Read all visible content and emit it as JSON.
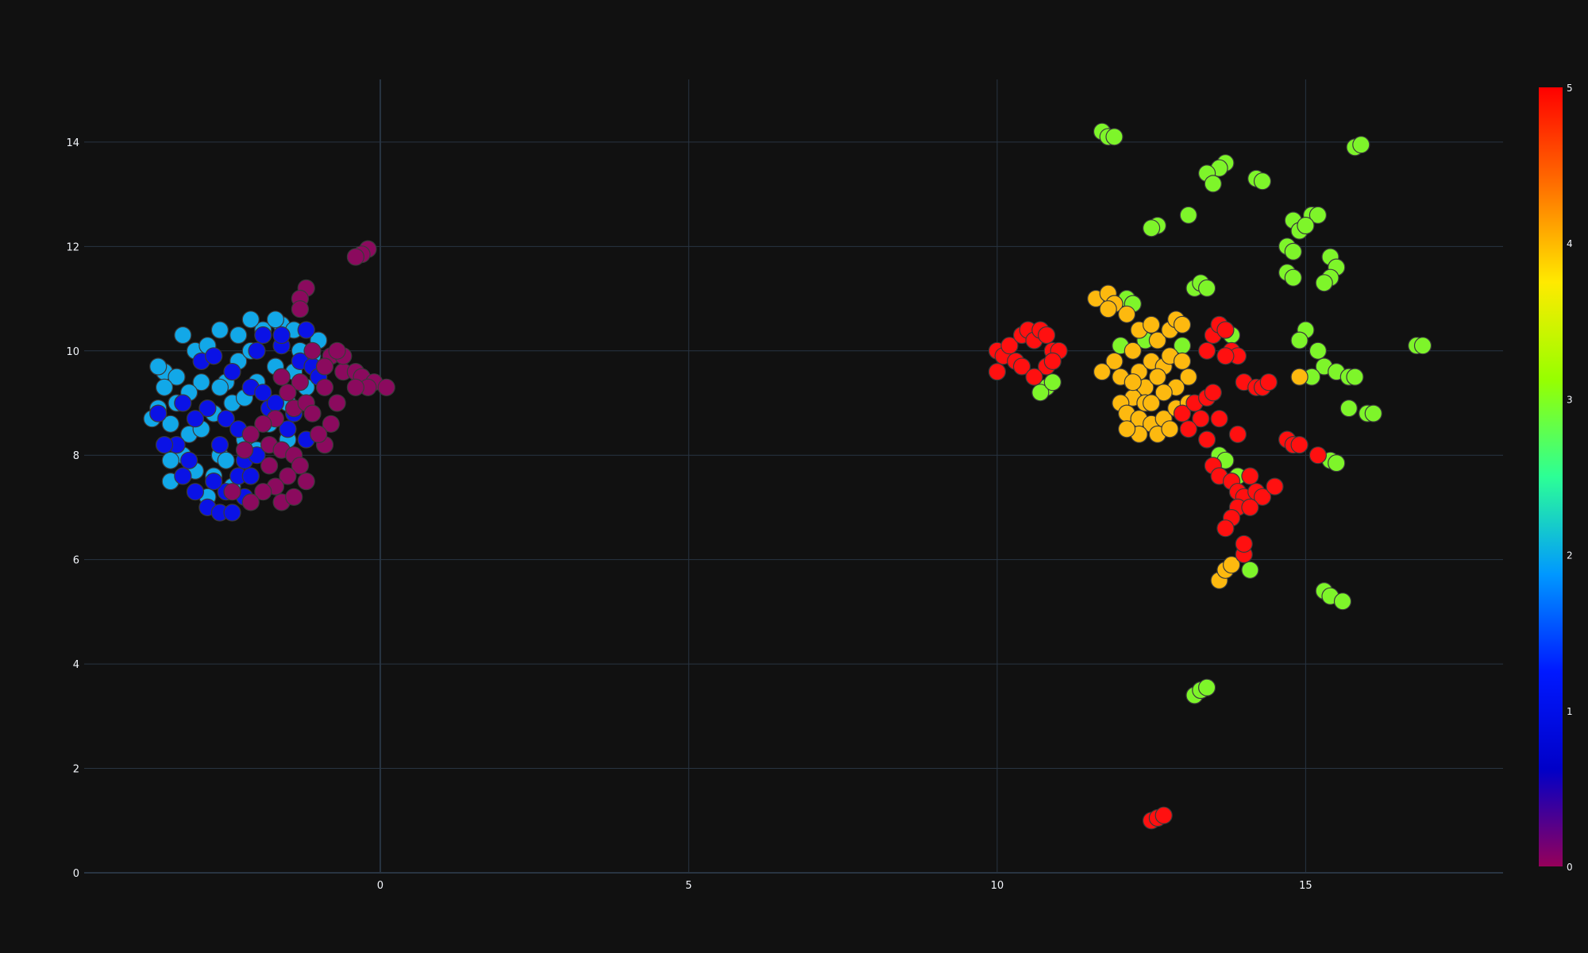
{
  "chart_data": {
    "type": "scatter",
    "title": "",
    "xlabel": "",
    "ylabel": "",
    "xlim": [
      -4.8,
      18.2
    ],
    "ylim": [
      0,
      15.2
    ],
    "xticks": [
      0,
      5,
      10,
      15
    ],
    "xtick_labels": [
      "0",
      "5",
      "10",
      "15"
    ],
    "yticks": [
      0,
      2,
      4,
      6,
      8,
      10,
      12,
      14
    ],
    "ytick_labels": [
      "0",
      "2",
      "4",
      "6",
      "8",
      "10",
      "12",
      "14"
    ],
    "grid": true,
    "colorscale": "rainbow",
    "color_range": [
      0,
      5
    ],
    "colorbar_ticks": [
      0,
      1,
      2,
      3,
      4,
      5
    ],
    "colorbar_tick_labels": [
      "0",
      "1",
      "2",
      "3",
      "4",
      "5"
    ],
    "colorscale_stops": [
      "#96005a",
      "#0000c8",
      "#0019ff",
      "#0098ff",
      "#2cff96",
      "#97ff00",
      "#ffea00",
      "#ff6f00",
      "#ff0000"
    ],
    "clusters": [
      {
        "class": 2,
        "points": [
          [
            -3.0,
            10.0
          ],
          [
            -2.8,
            10.1
          ],
          [
            -3.5,
            9.6
          ],
          [
            -3.3,
            9.5
          ],
          [
            -3.4,
            8.6
          ],
          [
            -3.1,
            8.4
          ],
          [
            -3.6,
            8.9
          ],
          [
            -3.2,
            8.0
          ],
          [
            -3.0,
            7.7
          ],
          [
            -3.4,
            7.5
          ],
          [
            -2.7,
            7.6
          ],
          [
            -2.6,
            8.0
          ],
          [
            -2.9,
            8.5
          ],
          [
            -2.5,
            9.4
          ],
          [
            -2.3,
            9.8
          ],
          [
            -2.1,
            10.0
          ],
          [
            -1.9,
            10.4
          ],
          [
            -1.6,
            10.5
          ],
          [
            -1.7,
            9.7
          ],
          [
            -1.4,
            9.6
          ],
          [
            -1.3,
            10.0
          ],
          [
            -1.0,
            10.2
          ],
          [
            -1.2,
            9.3
          ],
          [
            -1.5,
            9.0
          ],
          [
            -2.4,
            9.0
          ],
          [
            -2.6,
            9.3
          ],
          [
            -2.0,
            9.4
          ],
          [
            -1.8,
            8.6
          ],
          [
            -2.7,
            8.8
          ],
          [
            -2.2,
            8.3
          ],
          [
            -3.3,
            9.0
          ],
          [
            -3.5,
            9.3
          ],
          [
            -3.7,
            8.7
          ],
          [
            -1.7,
            10.6
          ],
          [
            -1.4,
            10.4
          ],
          [
            -2.9,
            9.4
          ],
          [
            -2.5,
            7.9
          ],
          [
            -2.0,
            8.1
          ],
          [
            -1.1,
            9.9
          ],
          [
            -1.5,
            8.3
          ],
          [
            -2.1,
            10.6
          ],
          [
            -2.3,
            10.3
          ],
          [
            -3.2,
            10.3
          ],
          [
            -3.4,
            7.9
          ],
          [
            -2.8,
            7.2
          ],
          [
            -2.4,
            7.4
          ],
          [
            -3.1,
            9.2
          ],
          [
            -2.6,
            10.4
          ],
          [
            -3.6,
            9.7
          ],
          [
            -2.2,
            9.1
          ]
        ]
      },
      {
        "class": 1,
        "points": [
          [
            -3.6,
            8.8
          ],
          [
            -3.3,
            8.2
          ],
          [
            -3.1,
            7.9
          ],
          [
            -3.0,
            7.3
          ],
          [
            -2.8,
            7.0
          ],
          [
            -2.6,
            6.9
          ],
          [
            -2.5,
            7.3
          ],
          [
            -2.3,
            7.6
          ],
          [
            -2.2,
            7.9
          ],
          [
            -2.0,
            8.0
          ],
          [
            -2.1,
            7.6
          ],
          [
            -2.6,
            8.2
          ],
          [
            -2.8,
            8.9
          ],
          [
            -2.5,
            8.7
          ],
          [
            -2.4,
            9.6
          ],
          [
            -2.1,
            9.3
          ],
          [
            -1.9,
            10.3
          ],
          [
            -1.6,
            10.1
          ],
          [
            -1.3,
            9.8
          ],
          [
            -1.1,
            9.7
          ],
          [
            -1.2,
            10.4
          ],
          [
            -1.4,
            8.8
          ],
          [
            -1.2,
            8.3
          ],
          [
            -1.5,
            8.5
          ],
          [
            -2.9,
            9.8
          ],
          [
            -3.2,
            9.0
          ],
          [
            -1.8,
            8.9
          ],
          [
            -1.9,
            9.2
          ],
          [
            -3.5,
            8.2
          ],
          [
            -2.7,
            7.5
          ],
          [
            -2.4,
            6.9
          ],
          [
            -2.2,
            7.2
          ],
          [
            -3.2,
            7.6
          ],
          [
            -2.0,
            10.0
          ],
          [
            -1.7,
            9.0
          ],
          [
            -2.3,
            8.5
          ],
          [
            -1.6,
            10.3
          ],
          [
            -2.7,
            9.9
          ],
          [
            -3.0,
            8.7
          ],
          [
            -1.0,
            9.5
          ]
        ]
      },
      {
        "class": 0,
        "points": [
          [
            -0.2,
            11.95
          ],
          [
            -0.3,
            11.85
          ],
          [
            -0.4,
            11.8
          ],
          [
            -1.2,
            11.2
          ],
          [
            -1.3,
            11.0
          ],
          [
            -1.3,
            10.8
          ],
          [
            -1.1,
            10.0
          ],
          [
            -0.8,
            9.9
          ],
          [
            -0.9,
            9.7
          ],
          [
            -1.3,
            9.4
          ],
          [
            -1.5,
            9.2
          ],
          [
            -1.4,
            8.9
          ],
          [
            -1.2,
            9.0
          ],
          [
            -1.7,
            8.7
          ],
          [
            -1.9,
            8.6
          ],
          [
            -2.1,
            8.4
          ],
          [
            -1.8,
            8.2
          ],
          [
            -1.6,
            8.1
          ],
          [
            -1.4,
            8.0
          ],
          [
            -1.3,
            7.8
          ],
          [
            -1.5,
            7.6
          ],
          [
            -1.7,
            7.4
          ],
          [
            -1.9,
            7.3
          ],
          [
            -2.1,
            7.1
          ],
          [
            -1.6,
            7.1
          ],
          [
            -1.4,
            7.2
          ],
          [
            -1.2,
            7.5
          ],
          [
            -0.9,
            8.2
          ],
          [
            -0.8,
            8.6
          ],
          [
            -0.7,
            9.0
          ],
          [
            -0.6,
            9.6
          ],
          [
            -0.4,
            9.6
          ],
          [
            -0.3,
            9.5
          ],
          [
            -0.1,
            9.4
          ],
          [
            -0.2,
            9.3
          ],
          [
            0.1,
            9.3
          ],
          [
            -0.4,
            9.3
          ],
          [
            -0.6,
            9.9
          ],
          [
            -1.0,
            8.4
          ],
          [
            -1.6,
            9.5
          ],
          [
            -1.8,
            7.8
          ],
          [
            -2.4,
            7.3
          ],
          [
            -1.1,
            8.8
          ],
          [
            -2.2,
            8.1
          ],
          [
            -0.9,
            9.3
          ],
          [
            -0.7,
            10.0
          ]
        ]
      },
      {
        "class": 3,
        "points": [
          [
            11.7,
            14.2
          ],
          [
            11.8,
            14.1
          ],
          [
            11.9,
            14.1
          ],
          [
            13.7,
            13.6
          ],
          [
            13.6,
            13.5
          ],
          [
            13.4,
            13.4
          ],
          [
            13.5,
            13.2
          ],
          [
            14.2,
            13.3
          ],
          [
            14.3,
            13.25
          ],
          [
            13.1,
            12.6
          ],
          [
            12.6,
            12.4
          ],
          [
            12.5,
            12.35
          ],
          [
            14.8,
            12.5
          ],
          [
            15.1,
            12.6
          ],
          [
            15.2,
            12.6
          ],
          [
            15.8,
            13.9
          ],
          [
            15.9,
            13.95
          ],
          [
            14.7,
            12.0
          ],
          [
            14.8,
            11.9
          ],
          [
            14.9,
            12.3
          ],
          [
            15.0,
            12.4
          ],
          [
            14.7,
            11.5
          ],
          [
            14.8,
            11.4
          ],
          [
            15.4,
            11.8
          ],
          [
            15.5,
            11.6
          ],
          [
            15.4,
            11.4
          ],
          [
            15.3,
            11.3
          ],
          [
            13.2,
            11.2
          ],
          [
            13.3,
            11.3
          ],
          [
            13.4,
            11.2
          ],
          [
            13.8,
            10.3
          ],
          [
            15.0,
            10.4
          ],
          [
            14.9,
            10.2
          ],
          [
            15.2,
            10.0
          ],
          [
            15.3,
            9.7
          ],
          [
            15.1,
            9.5
          ],
          [
            15.5,
            9.6
          ],
          [
            15.7,
            9.5
          ],
          [
            15.8,
            9.5
          ],
          [
            15.7,
            8.9
          ],
          [
            16.0,
            8.8
          ],
          [
            16.1,
            8.8
          ],
          [
            16.8,
            10.1
          ],
          [
            16.9,
            10.1
          ],
          [
            15.4,
            7.9
          ],
          [
            15.5,
            7.85
          ],
          [
            15.3,
            5.4
          ],
          [
            15.4,
            5.3
          ],
          [
            15.6,
            5.2
          ],
          [
            13.2,
            3.4
          ],
          [
            13.3,
            3.5
          ],
          [
            13.4,
            3.55
          ],
          [
            10.8,
            9.3
          ],
          [
            10.7,
            9.2
          ],
          [
            10.9,
            9.4
          ],
          [
            12.1,
            11.0
          ],
          [
            12.2,
            10.9
          ],
          [
            13.6,
            8.0
          ],
          [
            13.7,
            7.9
          ],
          [
            13.9,
            7.6
          ],
          [
            14.1,
            5.8
          ],
          [
            13.0,
            10.1
          ],
          [
            12.4,
            10.2
          ],
          [
            12.0,
            10.1
          ]
        ]
      },
      {
        "class": 4,
        "points": [
          [
            11.6,
            11.0
          ],
          [
            11.8,
            11.1
          ],
          [
            11.9,
            10.9
          ],
          [
            12.1,
            10.7
          ],
          [
            12.3,
            10.4
          ],
          [
            12.5,
            10.5
          ],
          [
            12.6,
            10.2
          ],
          [
            12.8,
            10.4
          ],
          [
            12.9,
            10.6
          ],
          [
            12.2,
            10.0
          ],
          [
            11.9,
            9.8
          ],
          [
            11.7,
            9.6
          ],
          [
            12.0,
            9.5
          ],
          [
            12.3,
            9.6
          ],
          [
            12.5,
            9.8
          ],
          [
            12.7,
            9.7
          ],
          [
            12.8,
            9.9
          ],
          [
            13.0,
            9.8
          ],
          [
            13.1,
            9.5
          ],
          [
            12.9,
            9.3
          ],
          [
            12.7,
            9.2
          ],
          [
            12.4,
            9.3
          ],
          [
            12.2,
            9.1
          ],
          [
            12.0,
            9.0
          ],
          [
            12.1,
            8.8
          ],
          [
            12.3,
            8.7
          ],
          [
            12.5,
            8.6
          ],
          [
            12.7,
            8.7
          ],
          [
            12.9,
            8.9
          ],
          [
            13.1,
            9.0
          ],
          [
            12.6,
            8.4
          ],
          [
            12.3,
            8.4
          ],
          [
            12.1,
            8.5
          ],
          [
            12.4,
            9.0
          ],
          [
            12.6,
            9.5
          ],
          [
            11.8,
            10.8
          ],
          [
            13.0,
            10.5
          ],
          [
            12.2,
            9.4
          ],
          [
            13.6,
            5.6
          ],
          [
            13.7,
            5.8
          ],
          [
            13.8,
            5.9
          ],
          [
            14.9,
            9.5
          ],
          [
            12.8,
            8.5
          ],
          [
            12.5,
            9.0
          ]
        ]
      },
      {
        "class": 5,
        "points": [
          [
            10.0,
            10.0
          ],
          [
            10.1,
            9.9
          ],
          [
            10.2,
            10.1
          ],
          [
            10.3,
            9.8
          ],
          [
            10.0,
            9.6
          ],
          [
            10.4,
            9.7
          ],
          [
            10.4,
            10.3
          ],
          [
            10.5,
            10.4
          ],
          [
            10.6,
            10.2
          ],
          [
            10.7,
            10.4
          ],
          [
            10.8,
            10.3
          ],
          [
            10.9,
            10.0
          ],
          [
            11.0,
            10.0
          ],
          [
            10.8,
            9.7
          ],
          [
            10.9,
            9.8
          ],
          [
            10.6,
            9.5
          ],
          [
            13.0,
            8.8
          ],
          [
            13.2,
            9.0
          ],
          [
            13.3,
            8.7
          ],
          [
            13.1,
            8.5
          ],
          [
            13.4,
            9.1
          ],
          [
            13.5,
            9.2
          ],
          [
            13.6,
            8.7
          ],
          [
            13.5,
            10.3
          ],
          [
            13.6,
            10.5
          ],
          [
            13.7,
            10.4
          ],
          [
            13.8,
            10.0
          ],
          [
            13.9,
            9.9
          ],
          [
            13.4,
            10.0
          ],
          [
            14.0,
            9.4
          ],
          [
            14.2,
            9.3
          ],
          [
            14.3,
            9.3
          ],
          [
            14.4,
            9.4
          ],
          [
            13.9,
            8.4
          ],
          [
            13.5,
            7.8
          ],
          [
            13.6,
            7.6
          ],
          [
            13.8,
            7.5
          ],
          [
            13.9,
            7.3
          ],
          [
            14.0,
            7.2
          ],
          [
            14.2,
            7.3
          ],
          [
            14.3,
            7.2
          ],
          [
            14.1,
            7.6
          ],
          [
            13.9,
            7.0
          ],
          [
            13.8,
            6.8
          ],
          [
            13.7,
            6.6
          ],
          [
            14.0,
            6.1
          ],
          [
            14.0,
            6.3
          ],
          [
            14.5,
            7.4
          ],
          [
            14.7,
            8.3
          ],
          [
            14.8,
            8.2
          ],
          [
            14.9,
            8.2
          ],
          [
            15.2,
            8.0
          ],
          [
            12.5,
            1.0
          ],
          [
            12.6,
            1.05
          ],
          [
            12.7,
            1.1
          ],
          [
            13.7,
            9.9
          ],
          [
            13.4,
            8.3
          ],
          [
            14.1,
            7.0
          ]
        ]
      }
    ]
  }
}
